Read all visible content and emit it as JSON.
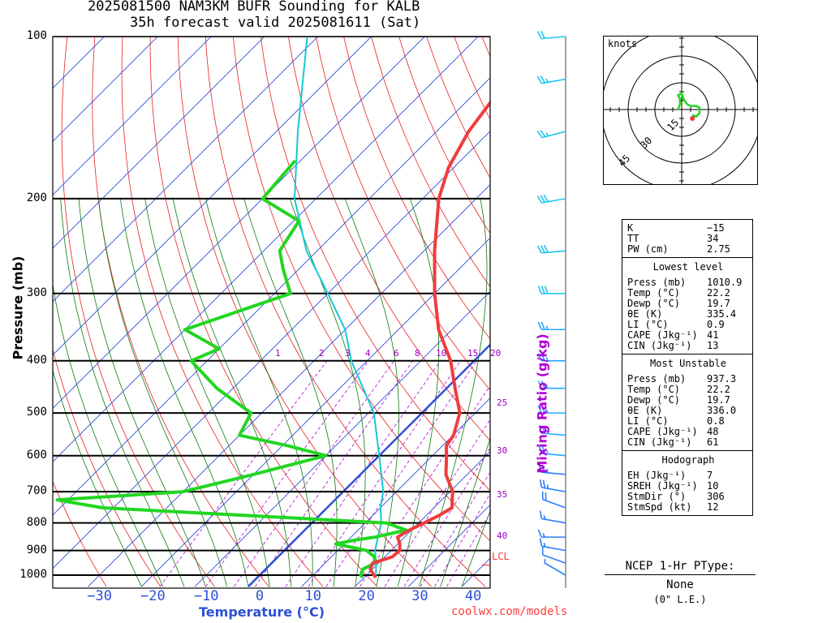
{
  "title": {
    "line1": "2025081500 NAM3KM BUFR Sounding for KALB",
    "line2": "35h forecast valid 2025081611 (Sat)"
  },
  "footer": "coolwx.com/models",
  "chart_data": {
    "type": "skew-t",
    "ylabel": "Pressure (mb)",
    "xlabel": "Temperature (°C)",
    "mixing_ratio_label": "Mixing Ratio (g/kg)",
    "pressure_ticks": [
      "100",
      "200",
      "300",
      "400",
      "500",
      "600",
      "700",
      "800",
      "900",
      "1000"
    ],
    "temperature_ticks": [
      "−30",
      "−20",
      "−10",
      "0",
      "10",
      "20",
      "30",
      "40"
    ],
    "mixing_ratio_ticks_top": [
      "1",
      "2",
      "3",
      "4",
      "6",
      "8",
      "10",
      "15",
      "20"
    ],
    "mixing_ratio_ticks_side": [
      "25",
      "30",
      "35",
      "40"
    ],
    "lcl_label": "LCL",
    "temperature_profile": [
      [
        1010,
        22.2
      ],
      [
        1000,
        21.4
      ],
      [
        975,
        19.6
      ],
      [
        950,
        18.9
      ],
      [
        925,
        21.4
      ],
      [
        900,
        21.6
      ],
      [
        875,
        20.4
      ],
      [
        850,
        18.7
      ],
      [
        825,
        19.6
      ],
      [
        800,
        21.0
      ],
      [
        775,
        22.4
      ],
      [
        750,
        23.4
      ],
      [
        700,
        20.5
      ],
      [
        650,
        16.0
      ],
      [
        600,
        12.6
      ],
      [
        575,
        10.7
      ],
      [
        550,
        10.1
      ],
      [
        500,
        7.1
      ],
      [
        450,
        1.6
      ],
      [
        400,
        -4.4
      ],
      [
        350,
        -12.5
      ],
      [
        300,
        -20.0
      ],
      [
        250,
        -28.0
      ],
      [
        200,
        -37.0
      ],
      [
        175,
        -41.0
      ],
      [
        150,
        -44.0
      ],
      [
        125,
        -46.0
      ],
      [
        110,
        -47.0
      ],
      [
        100,
        -48.5
      ]
    ],
    "dewpoint_profile": [
      [
        1010,
        19.7
      ],
      [
        1000,
        18.9
      ],
      [
        975,
        18.2
      ],
      [
        950,
        19.3
      ],
      [
        925,
        18.1
      ],
      [
        900,
        15.4
      ],
      [
        875,
        8.4
      ],
      [
        860,
        11.5
      ],
      [
        850,
        14.5
      ],
      [
        825,
        19.0
      ],
      [
        800,
        14.0
      ],
      [
        750,
        -42.0
      ],
      [
        725,
        -52.0
      ],
      [
        700,
        -30.0
      ],
      [
        650,
        -20.0
      ],
      [
        600,
        -10.0
      ],
      [
        575,
        -19.0
      ],
      [
        550,
        -30.0
      ],
      [
        500,
        -32.0
      ],
      [
        450,
        -43.0
      ],
      [
        400,
        -53.0
      ],
      [
        380,
        -50.0
      ],
      [
        350,
        -60.0
      ],
      [
        300,
        -47.0
      ],
      [
        270,
        -53.0
      ],
      [
        250,
        -57.0
      ],
      [
        220,
        -59.0
      ],
      [
        200,
        -70.0
      ],
      [
        170,
        -71.0
      ]
    ],
    "parcel_profile": [
      [
        1010,
        22.2
      ],
      [
        960,
        20.0
      ],
      [
        900,
        17.0
      ],
      [
        850,
        15.0
      ],
      [
        800,
        13.0
      ],
      [
        750,
        10.0
      ],
      [
        700,
        7.5
      ],
      [
        600,
        0.0
      ],
      [
        500,
        -9.0
      ],
      [
        400,
        -23.0
      ],
      [
        350,
        -30.0
      ],
      [
        300,
        -40.0
      ],
      [
        250,
        -52.0
      ],
      [
        200,
        -64.0
      ],
      [
        150,
        -76.0
      ],
      [
        100,
        -92.0
      ]
    ],
    "wind_barbs": [
      [
        1000,
        300,
        8
      ],
      [
        950,
        290,
        12
      ],
      [
        900,
        280,
        15
      ],
      [
        850,
        270,
        15
      ],
      [
        800,
        280,
        15
      ],
      [
        750,
        290,
        20
      ],
      [
        700,
        280,
        25
      ],
      [
        650,
        275,
        25
      ],
      [
        600,
        275,
        25
      ],
      [
        550,
        275,
        25
      ],
      [
        500,
        270,
        25
      ],
      [
        450,
        270,
        25
      ],
      [
        400,
        270,
        25
      ],
      [
        350,
        270,
        25
      ],
      [
        300,
        270,
        30
      ],
      [
        250,
        265,
        30
      ],
      [
        200,
        260,
        30
      ],
      [
        150,
        255,
        25
      ],
      [
        120,
        260,
        25
      ],
      [
        100,
        265,
        20
      ]
    ]
  },
  "hodograph": {
    "units_label": "knots",
    "ring_labels": [
      "15",
      "30",
      "45"
    ],
    "points": [
      [
        -2,
        0
      ],
      [
        -1,
        3
      ],
      [
        -1,
        6
      ],
      [
        -2,
        8
      ],
      [
        0,
        9
      ],
      [
        1,
        6
      ],
      [
        3,
        3
      ],
      [
        5,
        2
      ],
      [
        8,
        2
      ],
      [
        10,
        1
      ],
      [
        10,
        -2
      ],
      [
        8,
        -4
      ],
      [
        6,
        -3
      ]
    ],
    "storm_motion": [
      6,
      -5
    ]
  },
  "indices": {
    "top": [
      {
        "label": "K",
        "value": "−15"
      },
      {
        "label": "TT",
        "value": "34"
      },
      {
        "label": "PW (cm)",
        "value": "2.75"
      }
    ],
    "lowest_level": {
      "heading": "Lowest level",
      "rows": [
        {
          "label": "Press (mb)",
          "value": "1010.9"
        },
        {
          "label": "Temp (°C)",
          "value": "22.2"
        },
        {
          "label": "Dewp (°C)",
          "value": "19.7"
        },
        {
          "label": "θE (K)",
          "value": "335.4"
        },
        {
          "label": "LI (°C)",
          "value": "0.9"
        },
        {
          "label": "CAPE (Jkg⁻¹)",
          "value": "41"
        },
        {
          "label": "CIN (Jkg⁻¹)",
          "value": "13"
        }
      ]
    },
    "most_unstable": {
      "heading": "Most Unstable",
      "rows": [
        {
          "label": "Press (mb)",
          "value": "937.3"
        },
        {
          "label": "Temp (°C)",
          "value": "22.2"
        },
        {
          "label": "Dewp (°C)",
          "value": "19.7"
        },
        {
          "label": "θE (K)",
          "value": "336.0"
        },
        {
          "label": "LI (°C)",
          "value": "0.8"
        },
        {
          "label": "CAPE (Jkg⁻¹)",
          "value": "48"
        },
        {
          "label": "CIN (Jkg⁻¹)",
          "value": "61"
        }
      ]
    },
    "hodograph": {
      "heading": "Hodograph",
      "rows": [
        {
          "label": "EH (Jkg⁻¹)",
          "value": "7"
        },
        {
          "label": "SREH (Jkg⁻¹)",
          "value": "10"
        },
        {
          "label": "StmDir (°)",
          "value": "306"
        },
        {
          "label": "StmSpd (kt)",
          "value": "12"
        }
      ]
    }
  },
  "ptype": {
    "heading": "NCEP 1-Hr PType:",
    "value": "None",
    "sub": "(0\" L.E.)"
  },
  "colors": {
    "temperature": "#f03c3c",
    "dewpoint": "#22d622",
    "parcel": "#16c8d8",
    "isotherm": "#2d4fd6",
    "dry_adiabat": "#e81e1e",
    "moist_adiabat": "#0a7a0a",
    "mixing_ratio": "#b000d6",
    "barbs": "#1ea0ff"
  }
}
